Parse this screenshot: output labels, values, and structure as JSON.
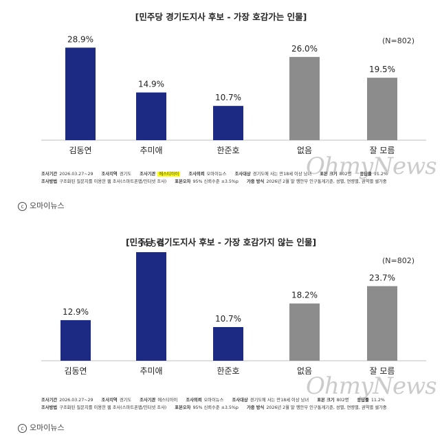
{
  "watermark": "OhmyNews",
  "credit": "오마이뉴스",
  "copyright_mark": "c",
  "colors": {
    "primary": "#1c2a83",
    "neutral": "#8c8c8c"
  },
  "meta": {
    "period_label": "조사기간",
    "period": "2026.03.27~29",
    "region_label": "조사지역",
    "region": "경기도",
    "agency_label": "조사기관",
    "agency": "에스티아이",
    "client_label": "조사의뢰",
    "client": "오마이뉴스",
    "target_label": "조사대상",
    "target": "경기도에 사는 만18세 이상 남녀",
    "sample_label": "표본 크기",
    "sample": "802명",
    "rate_label": "응답률",
    "rate": "11.2%",
    "method_label": "조사방법",
    "method": "구조화된 질문지를 이용한 웹 조사(스마트폰앱/인터넷 조사)",
    "error_label": "표본오차",
    "error": "95% 신뢰수준 ±3.5%p",
    "weight_label": "가중 방식",
    "weight": "2026년 2월 말 행안부 인구통계기준, 성별, 연령별, 권역별 셀가중"
  },
  "chart_data": [
    {
      "type": "bar",
      "title": "[민주당 경기도지사 후보 - 가장 호감가는 인물]",
      "note": "(N=802)",
      "categories": [
        "김동연",
        "추미애",
        "한준호",
        "없음",
        "잘 모름"
      ],
      "values": [
        28.9,
        14.9,
        10.7,
        26.0,
        19.5
      ],
      "value_labels": [
        "28.9%",
        "14.9%",
        "10.7%",
        "26.0%",
        "19.5%"
      ],
      "bar_colors": [
        "#1c2a83",
        "#1c2a83",
        "#1c2a83",
        "#8c8c8c",
        "#8c8c8c"
      ],
      "ylim": [
        0,
        40
      ],
      "grid": false
    },
    {
      "type": "bar",
      "title": "[민주당 경기도지사 후보 - 가장 호감가지 않는 인물]",
      "note": "(N=802)",
      "categories": [
        "김동연",
        "추미애",
        "한준호",
        "없음",
        "잘 모름"
      ],
      "values": [
        12.9,
        34.5,
        10.7,
        18.2,
        23.7
      ],
      "value_labels": [
        "12.9%",
        "34.5%",
        "10.7%",
        "18.2%",
        "23.7%"
      ],
      "bar_colors": [
        "#1c2a83",
        "#1c2a83",
        "#1c2a83",
        "#8c8c8c",
        "#8c8c8c"
      ],
      "ylim": [
        0,
        40
      ],
      "grid": false
    }
  ]
}
